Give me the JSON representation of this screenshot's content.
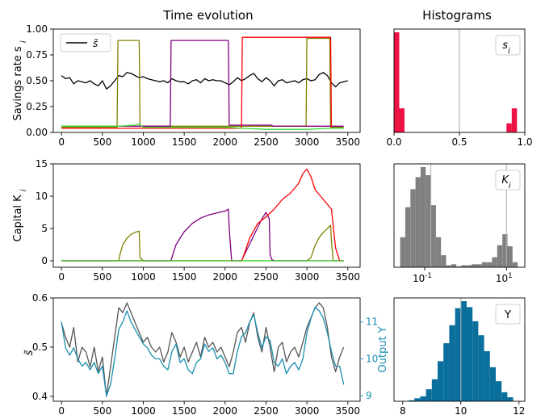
{
  "figure": {
    "col_titles": [
      "Time evolution",
      "Histograms"
    ]
  },
  "colors": {
    "black": "#000000",
    "olive": "#808000",
    "purple": "#800080",
    "red": "#ff0000",
    "green": "#33dd33",
    "gray": "#555555",
    "teal": "#1a8fb0",
    "crimson": "#ee1144",
    "hist_gray": "#808080",
    "hist_blue": "#0a6f9c",
    "vline": "#b0b0b0"
  },
  "chart_data": [
    {
      "id": "savings",
      "type": "line",
      "ylabel": "Savings rate s_i",
      "xlim": [
        -100,
        3650
      ],
      "ylim": [
        0,
        1.0
      ],
      "xticks": [
        0,
        500,
        1000,
        1500,
        2000,
        2500,
        3000,
        3500
      ],
      "yticks": [
        0.0,
        0.25,
        0.5,
        0.75,
        1.0
      ],
      "ytick_labels": [
        "0.00",
        "0.25",
        "0.50",
        "0.75",
        "1.00"
      ],
      "legend": {
        "label": "s̃",
        "position": "top-left"
      },
      "series": [
        {
          "name": "s̃",
          "color": "black",
          "x": [
            0,
            50,
            100,
            150,
            200,
            250,
            300,
            350,
            400,
            450,
            500,
            550,
            600,
            650,
            700,
            750,
            800,
            850,
            900,
            950,
            1000,
            1050,
            1100,
            1150,
            1200,
            1250,
            1300,
            1350,
            1400,
            1450,
            1500,
            1550,
            1600,
            1650,
            1700,
            1750,
            1800,
            1850,
            1900,
            1950,
            2000,
            2050,
            2100,
            2150,
            2200,
            2250,
            2300,
            2350,
            2400,
            2450,
            2500,
            2550,
            2600,
            2650,
            2700,
            2750,
            2800,
            2850,
            2900,
            2950,
            3000,
            3050,
            3100,
            3150,
            3200,
            3250,
            3300,
            3350,
            3400,
            3450,
            3500
          ],
          "y": [
            0.55,
            0.52,
            0.53,
            0.47,
            0.5,
            0.49,
            0.48,
            0.5,
            0.47,
            0.45,
            0.5,
            0.42,
            0.45,
            0.5,
            0.55,
            0.54,
            0.58,
            0.57,
            0.55,
            0.53,
            0.54,
            0.52,
            0.51,
            0.5,
            0.49,
            0.5,
            0.48,
            0.52,
            0.5,
            0.49,
            0.49,
            0.47,
            0.5,
            0.51,
            0.48,
            0.52,
            0.5,
            0.51,
            0.5,
            0.5,
            0.48,
            0.46,
            0.49,
            0.53,
            0.5,
            0.52,
            0.55,
            0.57,
            0.52,
            0.49,
            0.53,
            0.5,
            0.45,
            0.5,
            0.51,
            0.48,
            0.49,
            0.5,
            0.48,
            0.51,
            0.52,
            0.5,
            0.51,
            0.56,
            0.58,
            0.55,
            0.48,
            0.44,
            0.48,
            0.49,
            0.5
          ]
        },
        {
          "name": "",
          "color": "olive",
          "x": [
            0,
            680,
            690,
            950,
            960,
            2990,
            3000,
            3280,
            3290,
            3450
          ],
          "y": [
            0.05,
            0.05,
            0.89,
            0.89,
            0.06,
            0.06,
            0.91,
            0.91,
            0.05,
            0.05
          ]
        },
        {
          "name": "",
          "color": "purple",
          "x": [
            0,
            1330,
            1340,
            2040,
            2050,
            2540,
            2550,
            2570,
            2580,
            3450
          ],
          "y": [
            0.06,
            0.06,
            0.89,
            0.89,
            0.07,
            0.07,
            0.07,
            0.07,
            0.06,
            0.06
          ]
        },
        {
          "name": "",
          "color": "red",
          "x": [
            0,
            2200,
            2210,
            3290,
            3300,
            3450
          ],
          "y": [
            0.04,
            0.04,
            0.92,
            0.92,
            0.04,
            0.04
          ]
        },
        {
          "name": "",
          "color": "green",
          "x": [
            0,
            700,
            900,
            950,
            1000,
            1330,
            1400,
            2000,
            2050,
            2200,
            2500,
            3000,
            3300,
            3450
          ],
          "y": [
            0.06,
            0.06,
            0.07,
            0.08,
            0.05,
            0.05,
            0.05,
            0.05,
            0.05,
            0.04,
            0.03,
            0.03,
            0.04,
            0.04
          ]
        }
      ]
    },
    {
      "id": "capital",
      "type": "line",
      "ylabel": "Capital K_i",
      "xlim": [
        -100,
        3650
      ],
      "ylim": [
        -1,
        15
      ],
      "xticks": [
        0,
        500,
        1000,
        1500,
        2000,
        2500,
        3000,
        3500
      ],
      "yticks": [
        0,
        5,
        10,
        15
      ],
      "ytick_labels": [
        "0",
        "5",
        "10",
        "15"
      ],
      "series": [
        {
          "name": "",
          "color": "olive",
          "x": [
            0,
            690,
            700,
            720,
            750,
            800,
            850,
            900,
            950,
            960,
            1000,
            3000,
            3050,
            3100,
            3150,
            3200,
            3250,
            3290,
            3300,
            3320,
            3450
          ],
          "y": [
            0,
            0,
            0.1,
            1.2,
            2.5,
            3.5,
            4.1,
            4.4,
            4.6,
            0.5,
            0,
            0,
            0.5,
            2.4,
            3.6,
            4.4,
            5.0,
            5.5,
            3.0,
            0,
            0
          ]
        },
        {
          "name": "",
          "color": "purple",
          "x": [
            0,
            1330,
            1340,
            1400,
            1500,
            1600,
            1700,
            1800,
            1900,
            2000,
            2040,
            2050,
            2080,
            2200,
            2450,
            2500,
            2540,
            2550,
            2570,
            2600,
            3450
          ],
          "y": [
            0,
            0,
            0.1,
            2.5,
            4.5,
            5.8,
            6.6,
            7.1,
            7.4,
            7.7,
            8.0,
            5.0,
            0,
            0,
            6.5,
            7.5,
            6.5,
            1.0,
            0.2,
            0,
            0
          ]
        },
        {
          "name": "",
          "color": "red",
          "x": [
            0,
            2200,
            2210,
            2300,
            2400,
            2500,
            2600,
            2700,
            2800,
            2900,
            2950,
            3000,
            3050,
            3100,
            3200,
            3300,
            3350,
            3400,
            3450
          ],
          "y": [
            0,
            0,
            0.2,
            3.5,
            5.8,
            6.8,
            8.0,
            9.5,
            10.5,
            12.0,
            13.5,
            14.2,
            13.0,
            11.0,
            9.5,
            8.0,
            2.0,
            0,
            0
          ]
        },
        {
          "name": "",
          "color": "green",
          "x": [
            0,
            3450
          ],
          "y": [
            0,
            0
          ]
        }
      ]
    },
    {
      "id": "output",
      "type": "line",
      "ylabel": "s̃",
      "ylabel_right": "Output Y",
      "xlim": [
        -100,
        3650
      ],
      "ylim": [
        0.39,
        0.6
      ],
      "ylim_right": [
        8.85,
        11.65
      ],
      "xticks": [
        0,
        500,
        1000,
        1500,
        2000,
        2500,
        3000,
        3500
      ],
      "yticks": [
        0.4,
        0.5,
        0.6
      ],
      "ytick_labels": [
        "0.4",
        "0.5",
        "0.6"
      ],
      "yticks_right": [
        9,
        10,
        11
      ],
      "ytick_labels_right": [
        "9",
        "10",
        "11"
      ],
      "series": [
        {
          "name": "",
          "color": "gray",
          "axis": "left",
          "x": [
            0,
            50,
            100,
            150,
            200,
            250,
            300,
            350,
            400,
            450,
            500,
            550,
            600,
            650,
            700,
            750,
            800,
            850,
            900,
            950,
            1000,
            1050,
            1100,
            1150,
            1200,
            1250,
            1300,
            1350,
            1400,
            1450,
            1500,
            1550,
            1600,
            1650,
            1700,
            1750,
            1800,
            1850,
            1900,
            1950,
            2000,
            2050,
            2100,
            2150,
            2200,
            2250,
            2300,
            2350,
            2400,
            2450,
            2500,
            2550,
            2600,
            2650,
            2700,
            2750,
            2800,
            2850,
            2900,
            2950,
            3000,
            3050,
            3100,
            3150,
            3200,
            3250,
            3300,
            3350,
            3400,
            3450
          ],
          "y": [
            0.55,
            0.52,
            0.5,
            0.54,
            0.47,
            0.5,
            0.49,
            0.46,
            0.5,
            0.45,
            0.48,
            0.4,
            0.46,
            0.52,
            0.58,
            0.57,
            0.59,
            0.57,
            0.55,
            0.53,
            0.51,
            0.52,
            0.5,
            0.49,
            0.5,
            0.47,
            0.49,
            0.53,
            0.51,
            0.48,
            0.5,
            0.47,
            0.49,
            0.51,
            0.48,
            0.52,
            0.5,
            0.51,
            0.49,
            0.5,
            0.48,
            0.46,
            0.49,
            0.53,
            0.54,
            0.51,
            0.55,
            0.57,
            0.52,
            0.49,
            0.54,
            0.5,
            0.45,
            0.5,
            0.51,
            0.47,
            0.49,
            0.5,
            0.48,
            0.51,
            0.54,
            0.56,
            0.58,
            0.59,
            0.58,
            0.54,
            0.48,
            0.45,
            0.48,
            0.5
          ]
        },
        {
          "name": "",
          "color": "teal",
          "axis": "right",
          "x": [
            0,
            50,
            100,
            150,
            200,
            250,
            300,
            350,
            400,
            450,
            500,
            550,
            600,
            650,
            700,
            750,
            800,
            850,
            900,
            950,
            1000,
            1050,
            1100,
            1150,
            1200,
            1250,
            1300,
            1350,
            1400,
            1450,
            1500,
            1550,
            1600,
            1650,
            1700,
            1750,
            1800,
            1850,
            1900,
            1950,
            2000,
            2050,
            2100,
            2150,
            2200,
            2250,
            2300,
            2350,
            2400,
            2450,
            2500,
            2550,
            2600,
            2650,
            2700,
            2750,
            2800,
            2850,
            2900,
            2950,
            3000,
            3050,
            3100,
            3150,
            3200,
            3250,
            3300,
            3350,
            3400,
            3450
          ],
          "y": [
            11.0,
            10.3,
            10.1,
            10.3,
            10.0,
            9.8,
            9.9,
            9.7,
            9.9,
            9.6,
            9.8,
            9.0,
            9.3,
            10.0,
            10.8,
            11.0,
            11.3,
            11.0,
            10.8,
            10.6,
            10.4,
            10.3,
            10.1,
            10.0,
            10.0,
            9.8,
            9.7,
            10.2,
            10.4,
            9.9,
            10.0,
            9.7,
            9.6,
            9.9,
            10.0,
            10.4,
            10.2,
            10.3,
            10.0,
            10.1,
            9.9,
            9.6,
            9.6,
            10.2,
            10.6,
            10.7,
            11.0,
            11.2,
            10.7,
            10.3,
            10.6,
            10.5,
            9.9,
            9.8,
            10.0,
            9.6,
            9.8,
            9.9,
            9.7,
            10.0,
            10.7,
            11.1,
            11.4,
            11.3,
            11.1,
            10.7,
            10.2,
            9.8,
            9.8,
            9.3
          ]
        }
      ]
    },
    {
      "id": "hist_s",
      "type": "bar",
      "legend": {
        "label": "s_i"
      },
      "xlim": [
        0,
        1.0
      ],
      "xticks": [
        0.0,
        0.5,
        1.0
      ],
      "xtick_labels": [
        "0.0",
        "0.5",
        "1.0"
      ],
      "vline": 0.5,
      "bin_width": 0.04,
      "bins": [
        0.0,
        0.04,
        0.86,
        0.9
      ],
      "counts": [
        1.0,
        0.24,
        0.09,
        0.24
      ]
    },
    {
      "id": "hist_k",
      "type": "bar",
      "legend": {
        "label": "K_i"
      },
      "xscale": "log",
      "xlim_log10": [
        -1.75,
        1.45
      ],
      "xticks_log10": [
        -1,
        1
      ],
      "xtick_labels": [
        "10^-1",
        "10^1"
      ],
      "vlines_log10": [
        -0.85,
        1.0
      ],
      "bin_width_log10": 0.125,
      "bins_log10": [
        -1.6,
        -1.475,
        -1.35,
        -1.225,
        -1.1,
        -0.975,
        -0.85,
        -0.725,
        -0.6,
        -0.475,
        -0.35,
        -0.225,
        -0.1,
        0.025,
        0.15,
        0.275,
        0.4,
        0.525,
        0.65,
        0.775,
        0.9,
        1.025,
        1.15
      ],
      "counts": [
        0.3,
        0.6,
        0.78,
        0.9,
        1.0,
        0.92,
        0.62,
        0.3,
        0.12,
        0.02,
        0.03,
        0.01,
        0.02,
        0.02,
        0.03,
        0.03,
        0.05,
        0.05,
        0.1,
        0.22,
        0.33,
        0.21,
        0.05
      ]
    },
    {
      "id": "hist_y",
      "type": "bar",
      "legend": {
        "label": "Y"
      },
      "xlim": [
        7.7,
        12.2
      ],
      "xticks": [
        8,
        10,
        12
      ],
      "xtick_labels": [
        "8",
        "10",
        "12"
      ],
      "vline": 10.0,
      "bin_width": 0.2,
      "bins": [
        8.2,
        8.4,
        8.6,
        8.8,
        9.0,
        9.2,
        9.4,
        9.6,
        9.8,
        10.0,
        10.2,
        10.4,
        10.6,
        10.8,
        11.0,
        11.2,
        11.4,
        11.6
      ],
      "counts": [
        0.01,
        0.03,
        0.05,
        0.12,
        0.22,
        0.4,
        0.58,
        0.76,
        0.93,
        1.0,
        0.94,
        0.8,
        0.66,
        0.5,
        0.34,
        0.2,
        0.09,
        0.04
      ]
    }
  ]
}
